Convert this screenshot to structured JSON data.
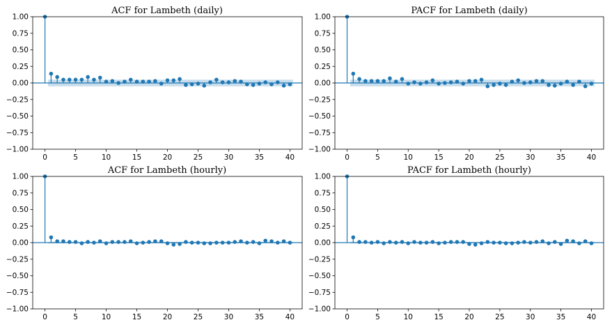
{
  "figure": {
    "panels": [
      {
        "key": "acf-daily",
        "title": "ACF for Lambeth (daily)",
        "type": "stem",
        "series_color": "#1f77b4",
        "band_color": "#1f77b4",
        "x": [
          0,
          1,
          2,
          3,
          4,
          5,
          6,
          7,
          8,
          9,
          10,
          11,
          12,
          13,
          14,
          15,
          16,
          17,
          18,
          19,
          20,
          21,
          22,
          23,
          24,
          25,
          26,
          27,
          28,
          29,
          30,
          31,
          32,
          33,
          34,
          35,
          36,
          37,
          38,
          39,
          40
        ],
        "values": [
          1.0,
          0.14,
          0.09,
          0.05,
          0.05,
          0.05,
          0.05,
          0.09,
          0.05,
          0.08,
          0.02,
          0.03,
          0.0,
          0.02,
          0.05,
          0.02,
          0.02,
          0.02,
          0.03,
          -0.01,
          0.04,
          0.04,
          0.06,
          -0.03,
          -0.02,
          -0.01,
          -0.04,
          0.01,
          0.05,
          0.01,
          0.01,
          0.03,
          0.02,
          -0.02,
          -0.03,
          -0.01,
          0.01,
          -0.02,
          0.01,
          -0.04,
          -0.02
        ],
        "conf_band": [
          0.05,
          0.05,
          0.05,
          0.05,
          0.05,
          0.05,
          0.05,
          0.05,
          0.05,
          0.05,
          0.05,
          0.05,
          0.05,
          0.05,
          0.05,
          0.05,
          0.05,
          0.05,
          0.05,
          0.05,
          0.05,
          0.05,
          0.05,
          0.05,
          0.05,
          0.05,
          0.05,
          0.05,
          0.05,
          0.05,
          0.05,
          0.05,
          0.05,
          0.05,
          0.05,
          0.05,
          0.05,
          0.05,
          0.05,
          0.05
        ],
        "xlim": [
          -2,
          42
        ],
        "ylim": [
          -1.0,
          1.0
        ]
      },
      {
        "key": "pacf-daily",
        "title": "PACF for Lambeth (daily)",
        "type": "stem",
        "series_color": "#1f77b4",
        "band_color": "#1f77b4",
        "x": [
          0,
          1,
          2,
          3,
          4,
          5,
          6,
          7,
          8,
          9,
          10,
          11,
          12,
          13,
          14,
          15,
          16,
          17,
          18,
          19,
          20,
          21,
          22,
          23,
          24,
          25,
          26,
          27,
          28,
          29,
          30,
          31,
          32,
          33,
          34,
          35,
          36,
          37,
          38,
          39,
          40
        ],
        "values": [
          1.0,
          0.14,
          0.06,
          0.03,
          0.03,
          0.03,
          0.03,
          0.07,
          0.02,
          0.06,
          -0.01,
          0.01,
          -0.01,
          0.01,
          0.04,
          -0.01,
          0.0,
          0.01,
          0.02,
          -0.01,
          0.03,
          0.03,
          0.05,
          -0.05,
          -0.03,
          -0.01,
          -0.03,
          0.02,
          0.04,
          0.0,
          0.01,
          0.03,
          0.03,
          -0.03,
          -0.04,
          -0.01,
          0.02,
          -0.03,
          0.02,
          -0.05,
          -0.01
        ],
        "conf_band": [
          0.05,
          0.05,
          0.05,
          0.05,
          0.05,
          0.05,
          0.05,
          0.05,
          0.05,
          0.05,
          0.05,
          0.05,
          0.05,
          0.05,
          0.05,
          0.05,
          0.05,
          0.05,
          0.05,
          0.05,
          0.05,
          0.05,
          0.05,
          0.05,
          0.05,
          0.05,
          0.05,
          0.05,
          0.05,
          0.05,
          0.05,
          0.05,
          0.05,
          0.05,
          0.05,
          0.05,
          0.05,
          0.05,
          0.05,
          0.05
        ],
        "xlim": [
          -2,
          42
        ],
        "ylim": [
          -1.0,
          1.0
        ]
      },
      {
        "key": "acf-hourly",
        "title": "ACF for Lambeth (hourly)",
        "type": "stem",
        "series_color": "#1f77b4",
        "band_color": "#1f77b4",
        "x": [
          0,
          1,
          2,
          3,
          4,
          5,
          6,
          7,
          8,
          9,
          10,
          11,
          12,
          13,
          14,
          15,
          16,
          17,
          18,
          19,
          20,
          21,
          22,
          23,
          24,
          25,
          26,
          27,
          28,
          29,
          30,
          31,
          32,
          33,
          34,
          35,
          36,
          37,
          38,
          39,
          40
        ],
        "values": [
          1.0,
          0.08,
          0.02,
          0.02,
          0.01,
          0.01,
          -0.01,
          0.01,
          0.0,
          0.02,
          -0.01,
          0.01,
          0.01,
          0.01,
          0.02,
          -0.01,
          0.0,
          0.01,
          0.02,
          0.02,
          -0.01,
          -0.03,
          -0.02,
          0.01,
          0.0,
          0.0,
          -0.01,
          -0.01,
          0.0,
          0.0,
          0.0,
          0.01,
          0.02,
          0.0,
          0.01,
          -0.01,
          0.03,
          0.02,
          0.0,
          0.02,
          0.0
        ],
        "conf_band": [
          0.012,
          0.012,
          0.012,
          0.012,
          0.012,
          0.012,
          0.012,
          0.012,
          0.012,
          0.012,
          0.012,
          0.012,
          0.012,
          0.012,
          0.012,
          0.012,
          0.012,
          0.012,
          0.012,
          0.012,
          0.012,
          0.012,
          0.012,
          0.012,
          0.012,
          0.012,
          0.012,
          0.012,
          0.012,
          0.012,
          0.012,
          0.012,
          0.012,
          0.012,
          0.012,
          0.012,
          0.012,
          0.012,
          0.012,
          0.012
        ],
        "xlim": [
          -2,
          42
        ],
        "ylim": [
          -1.0,
          1.0
        ]
      },
      {
        "key": "pacf-hourly",
        "title": "PACF for Lambeth (hourly)",
        "type": "stem",
        "series_color": "#1f77b4",
        "band_color": "#1f77b4",
        "x": [
          0,
          1,
          2,
          3,
          4,
          5,
          6,
          7,
          8,
          9,
          10,
          11,
          12,
          13,
          14,
          15,
          16,
          17,
          18,
          19,
          20,
          21,
          22,
          23,
          24,
          25,
          26,
          27,
          28,
          29,
          30,
          31,
          32,
          33,
          34,
          35,
          36,
          37,
          38,
          39,
          40
        ],
        "values": [
          1.0,
          0.08,
          0.01,
          0.01,
          0.0,
          0.01,
          -0.01,
          0.01,
          0.0,
          0.01,
          -0.01,
          0.01,
          0.0,
          0.0,
          0.01,
          -0.01,
          0.0,
          0.01,
          0.01,
          0.01,
          -0.02,
          -0.03,
          -0.01,
          0.01,
          0.0,
          0.0,
          -0.01,
          -0.01,
          0.0,
          0.01,
          0.0,
          0.01,
          0.02,
          -0.01,
          0.01,
          -0.02,
          0.03,
          0.02,
          -0.01,
          0.02,
          -0.01
        ],
        "conf_band": [
          0.012,
          0.012,
          0.012,
          0.012,
          0.012,
          0.012,
          0.012,
          0.012,
          0.012,
          0.012,
          0.012,
          0.012,
          0.012,
          0.012,
          0.012,
          0.012,
          0.012,
          0.012,
          0.012,
          0.012,
          0.012,
          0.012,
          0.012,
          0.012,
          0.012,
          0.012,
          0.012,
          0.012,
          0.012,
          0.012,
          0.012,
          0.012,
          0.012,
          0.012,
          0.012,
          0.012,
          0.012,
          0.012,
          0.012,
          0.012
        ],
        "xlim": [
          -2,
          42
        ],
        "ylim": [
          -1.0,
          1.0
        ]
      }
    ],
    "x_ticks": [
      "0",
      "5",
      "10",
      "15",
      "20",
      "25",
      "30",
      "35",
      "40"
    ],
    "y_ticks": [
      "1.00",
      "0.75",
      "0.50",
      "0.25",
      "0.00",
      "−0.25",
      "−0.50",
      "−0.75",
      "−1.00"
    ]
  },
  "chart_data": [
    {
      "type": "stem",
      "title": "ACF for Lambeth (daily)",
      "x": [
        0,
        1,
        2,
        3,
        4,
        5,
        6,
        7,
        8,
        9,
        10,
        11,
        12,
        13,
        14,
        15,
        16,
        17,
        18,
        19,
        20,
        21,
        22,
        23,
        24,
        25,
        26,
        27,
        28,
        29,
        30,
        31,
        32,
        33,
        34,
        35,
        36,
        37,
        38,
        39,
        40
      ],
      "values": [
        1.0,
        0.14,
        0.09,
        0.05,
        0.05,
        0.05,
        0.05,
        0.09,
        0.05,
        0.08,
        0.02,
        0.03,
        0.0,
        0.02,
        0.05,
        0.02,
        0.02,
        0.02,
        0.03,
        -0.01,
        0.04,
        0.04,
        0.06,
        -0.03,
        -0.02,
        -0.01,
        -0.04,
        0.01,
        0.05,
        0.01,
        0.01,
        0.03,
        0.02,
        -0.02,
        -0.03,
        -0.01,
        0.01,
        -0.02,
        0.01,
        -0.04,
        -0.02
      ],
      "xlim": [
        -2,
        42
      ],
      "ylim": [
        -1.0,
        1.0
      ],
      "grid": false
    },
    {
      "type": "stem",
      "title": "PACF for Lambeth (daily)",
      "x": [
        0,
        1,
        2,
        3,
        4,
        5,
        6,
        7,
        8,
        9,
        10,
        11,
        12,
        13,
        14,
        15,
        16,
        17,
        18,
        19,
        20,
        21,
        22,
        23,
        24,
        25,
        26,
        27,
        28,
        29,
        30,
        31,
        32,
        33,
        34,
        35,
        36,
        37,
        38,
        39,
        40
      ],
      "values": [
        1.0,
        0.14,
        0.06,
        0.03,
        0.03,
        0.03,
        0.03,
        0.07,
        0.02,
        0.06,
        -0.01,
        0.01,
        -0.01,
        0.01,
        0.04,
        -0.01,
        0.0,
        0.01,
        0.02,
        -0.01,
        0.03,
        0.03,
        0.05,
        -0.05,
        -0.03,
        -0.01,
        -0.03,
        0.02,
        0.04,
        0.0,
        0.01,
        0.03,
        0.03,
        -0.03,
        -0.04,
        -0.01,
        0.02,
        -0.03,
        0.02,
        -0.05,
        -0.01
      ],
      "xlim": [
        -2,
        42
      ],
      "ylim": [
        -1.0,
        1.0
      ],
      "grid": false
    },
    {
      "type": "stem",
      "title": "ACF for Lambeth (hourly)",
      "x": [
        0,
        1,
        2,
        3,
        4,
        5,
        6,
        7,
        8,
        9,
        10,
        11,
        12,
        13,
        14,
        15,
        16,
        17,
        18,
        19,
        20,
        21,
        22,
        23,
        24,
        25,
        26,
        27,
        28,
        29,
        30,
        31,
        32,
        33,
        34,
        35,
        36,
        37,
        38,
        39,
        40
      ],
      "values": [
        1.0,
        0.08,
        0.02,
        0.02,
        0.01,
        0.01,
        -0.01,
        0.01,
        0.0,
        0.02,
        -0.01,
        0.01,
        0.01,
        0.01,
        0.02,
        -0.01,
        0.0,
        0.01,
        0.02,
        0.02,
        -0.01,
        -0.03,
        -0.02,
        0.01,
        0.0,
        0.0,
        -0.01,
        -0.01,
        0.0,
        0.0,
        0.0,
        0.01,
        0.02,
        0.0,
        0.01,
        -0.01,
        0.03,
        0.02,
        0.0,
        0.02,
        0.0
      ],
      "xlim": [
        -2,
        42
      ],
      "ylim": [
        -1.0,
        1.0
      ],
      "grid": false
    },
    {
      "type": "stem",
      "title": "PACF for Lambeth (hourly)",
      "x": [
        0,
        1,
        2,
        3,
        4,
        5,
        6,
        7,
        8,
        9,
        10,
        11,
        12,
        13,
        14,
        15,
        16,
        17,
        18,
        19,
        20,
        21,
        22,
        23,
        24,
        25,
        26,
        27,
        28,
        29,
        30,
        31,
        32,
        33,
        34,
        35,
        36,
        37,
        38,
        39,
        40
      ],
      "values": [
        1.0,
        0.08,
        0.01,
        0.01,
        0.0,
        0.01,
        -0.01,
        0.01,
        0.0,
        0.01,
        -0.01,
        0.01,
        0.0,
        0.0,
        0.01,
        -0.01,
        0.0,
        0.01,
        0.01,
        0.01,
        -0.02,
        -0.03,
        -0.01,
        0.01,
        0.0,
        0.0,
        -0.01,
        -0.01,
        0.0,
        0.01,
        0.0,
        0.01,
        0.02,
        -0.01,
        0.01,
        -0.02,
        0.03,
        0.02,
        -0.01,
        0.02,
        -0.01
      ],
      "xlim": [
        -2,
        42
      ],
      "ylim": [
        -1.0,
        1.0
      ],
      "grid": false
    }
  ]
}
